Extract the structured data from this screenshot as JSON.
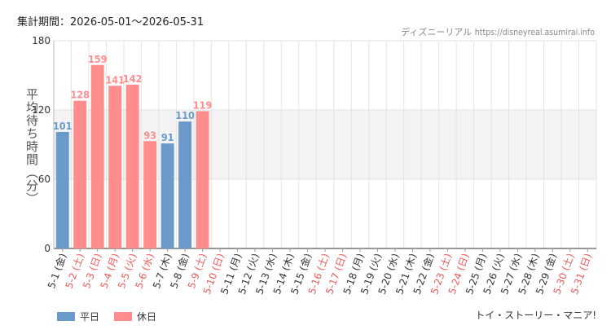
{
  "header": {
    "period": "集計期間：2026-05-01～2026-05-31",
    "source_name": "ディズニーリアル",
    "source_url": "https://disneyreal.asumirai.info"
  },
  "footer": {
    "attraction": "トイ・ストーリー・マニア!"
  },
  "legend": {
    "weekday": "平日",
    "holiday": "休日"
  },
  "colors": {
    "weekday": "#6a9ac9",
    "holiday": "#ff8d8d",
    "band": "#f3f3f3",
    "grid": "#e3e3e3"
  },
  "chart_data": {
    "type": "bar",
    "ylabel": "平均待ち時間（分）",
    "ylim": [
      0,
      180
    ],
    "yticks": [
      0,
      60,
      120,
      180
    ],
    "shaded_band": [
      60,
      120
    ],
    "categories": [
      "5-1 (金)",
      "5-2 (土)",
      "5-3 (日)",
      "5-4 (月)",
      "5-5 (火)",
      "5-6 (水)",
      "5-7 (木)",
      "5-8 (金)",
      "5-9 (土)",
      "5-10 (日)",
      "5-11 (月)",
      "5-12 (火)",
      "5-13 (水)",
      "5-14 (木)",
      "5-15 (金)",
      "5-16 (土)",
      "5-17 (日)",
      "5-18 (月)",
      "5-19 (火)",
      "5-20 (水)",
      "5-21 (木)",
      "5-22 (金)",
      "5-23 (土)",
      "5-24 (日)",
      "5-25 (月)",
      "5-26 (火)",
      "5-27 (水)",
      "5-28 (木)",
      "5-29 (金)",
      "5-30 (土)",
      "5-31 (日)"
    ],
    "day_type": [
      "weekday",
      "holiday",
      "holiday",
      "holiday",
      "holiday",
      "holiday",
      "weekday",
      "weekday",
      "holiday",
      "holiday",
      "weekday",
      "weekday",
      "weekday",
      "weekday",
      "weekday",
      "holiday",
      "holiday",
      "weekday",
      "weekday",
      "weekday",
      "weekday",
      "weekday",
      "holiday",
      "holiday",
      "weekday",
      "weekday",
      "weekday",
      "weekday",
      "weekday",
      "holiday",
      "holiday"
    ],
    "values": [
      101,
      128,
      159,
      141,
      142,
      93,
      91,
      110,
      119,
      null,
      null,
      null,
      null,
      null,
      null,
      null,
      null,
      null,
      null,
      null,
      null,
      null,
      null,
      null,
      null,
      null,
      null,
      null,
      null,
      null,
      null
    ],
    "legend": [
      "平日",
      "休日"
    ],
    "legend_position": "bottom-left"
  }
}
